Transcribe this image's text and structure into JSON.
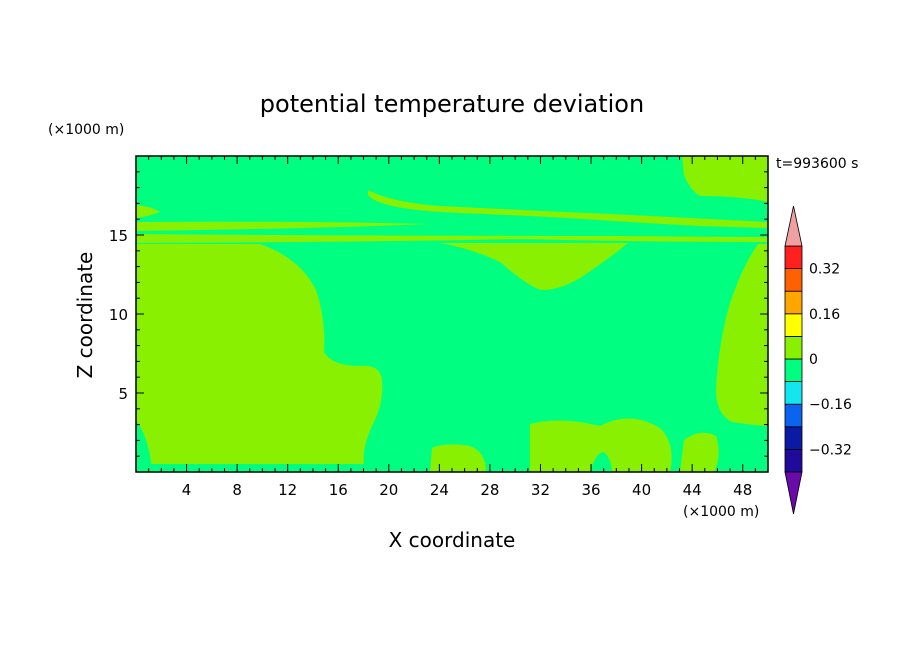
{
  "chart_data": {
    "type": "heatmap",
    "title": "potential temperature deviation",
    "xlabel": "X coordinate",
    "ylabel": "Z coordinate",
    "x_unit": "(×1000 m)",
    "y_unit": "(×1000 m)",
    "time_label": "t=993600 s",
    "xlim": [
      0,
      50
    ],
    "ylim": [
      0,
      20
    ],
    "x_ticks": [
      4,
      8,
      12,
      16,
      20,
      24,
      28,
      32,
      36,
      40,
      44,
      48
    ],
    "y_ticks": [
      5,
      10,
      15
    ],
    "colorbar": {
      "levels": [
        -0.4,
        -0.32,
        -0.24,
        -0.16,
        -0.08,
        0,
        0.08,
        0.16,
        0.24,
        0.32,
        0.4
      ],
      "labels": [
        "0.32",
        "0.16",
        "0",
        "−0.16",
        "−0.32"
      ],
      "label_values": [
        0.32,
        0.16,
        0,
        -0.16,
        -0.32
      ],
      "colors": [
        "#6a0aa8",
        "#1f0a9b",
        "#0a1aa5",
        "#0a64f0",
        "#14e6f0",
        "#00ff80",
        "#88f000",
        "#ffff00",
        "#ffa500",
        "#ff6000",
        "#ff2020",
        "#f0a0a0"
      ],
      "extend": "both"
    },
    "fields": {
      "background": "#00ff80",
      "positive_region": "#88f000"
    }
  }
}
